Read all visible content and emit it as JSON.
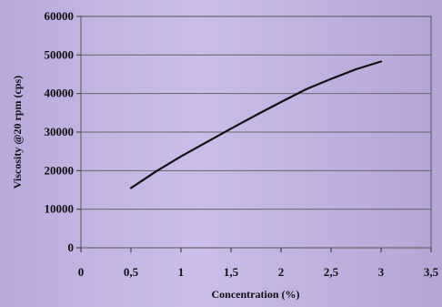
{
  "chart_data": {
    "type": "line",
    "title": "",
    "xlabel": "Concentration (%)",
    "ylabel": "Viscosity @20 rpm (cps)",
    "xlim": [
      0,
      3.5
    ],
    "ylim": [
      0,
      60000
    ],
    "x_ticks": [
      "0",
      "0,5",
      "1",
      "1,5",
      "2",
      "2,5",
      "3",
      "3,5"
    ],
    "y_ticks": [
      "0",
      "10000",
      "20000",
      "30000",
      "40000",
      "50000",
      "60000"
    ],
    "grid": "horizontal",
    "series": [
      {
        "color": "#111111",
        "x": [
          0.5,
          0.75,
          1.0,
          1.25,
          1.5,
          1.75,
          2.0,
          2.25,
          2.5,
          2.75,
          3.0
        ],
        "y": [
          15500,
          19800,
          23700,
          27300,
          30900,
          34400,
          37800,
          41100,
          43800,
          46300,
          48300
        ]
      }
    ]
  }
}
